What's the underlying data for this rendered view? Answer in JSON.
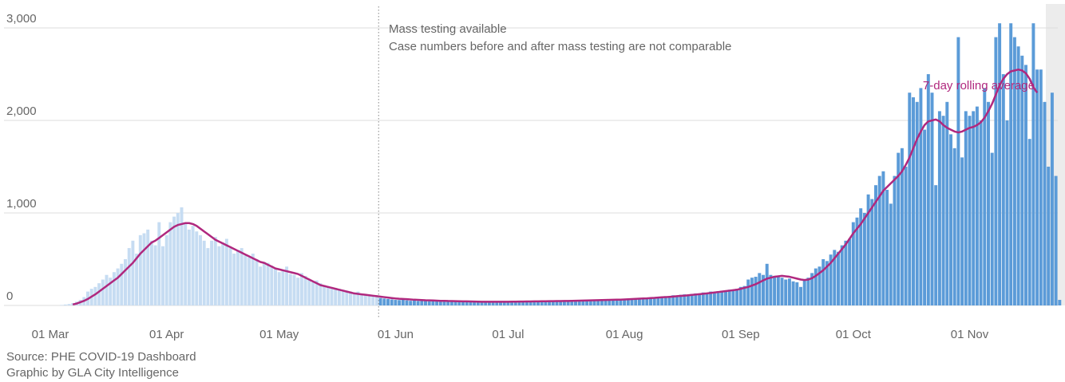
{
  "chart_data": {
    "type": "bar",
    "annotations": [
      "Mass testing available",
      "Case numbers before and after mass testing are not comparable"
    ],
    "source": "Source: PHE COVID-19 Dashboard",
    "credit": "Graphic by GLA City Intelligence",
    "categories": [
      "01 Mar",
      null,
      null,
      null,
      null,
      null,
      null,
      null,
      null,
      null,
      null,
      null,
      null,
      null,
      null,
      null,
      null,
      null,
      null,
      null,
      null,
      null,
      null,
      null,
      null,
      null,
      null,
      null,
      null,
      null,
      null,
      "01 Apr",
      null,
      null,
      null,
      null,
      null,
      null,
      null,
      null,
      null,
      null,
      null,
      null,
      null,
      null,
      null,
      null,
      null,
      null,
      null,
      null,
      null,
      null,
      null,
      null,
      null,
      null,
      null,
      null,
      null,
      "01 May",
      null,
      null,
      null,
      null,
      null,
      null,
      null,
      null,
      null,
      null,
      null,
      null,
      null,
      null,
      null,
      null,
      null,
      null,
      null,
      null,
      null,
      null,
      null,
      null,
      null,
      null,
      null,
      null,
      null,
      null,
      "01 Jun",
      null,
      null,
      null,
      null,
      null,
      null,
      null,
      null,
      null,
      null,
      null,
      null,
      null,
      null,
      null,
      null,
      null,
      null,
      null,
      null,
      null,
      null,
      null,
      null,
      null,
      null,
      null,
      null,
      null,
      "01 Jul",
      null,
      null,
      null,
      null,
      null,
      null,
      null,
      null,
      null,
      null,
      null,
      null,
      null,
      null,
      null,
      null,
      null,
      null,
      null,
      null,
      null,
      null,
      null,
      null,
      null,
      null,
      null,
      null,
      null,
      null,
      "01 Aug",
      null,
      null,
      null,
      null,
      null,
      null,
      null,
      null,
      null,
      null,
      null,
      null,
      null,
      null,
      null,
      null,
      null,
      null,
      null,
      null,
      null,
      null,
      null,
      null,
      null,
      null,
      null,
      null,
      null,
      null,
      "01 Sep",
      null,
      null,
      null,
      null,
      null,
      null,
      null,
      null,
      null,
      null,
      null,
      null,
      null,
      null,
      null,
      null,
      null,
      null,
      null,
      null,
      null,
      null,
      null,
      null,
      null,
      null,
      null,
      null,
      null,
      "01 Oct",
      null,
      null,
      null,
      null,
      null,
      null,
      null,
      null,
      null,
      null,
      null,
      null,
      null,
      null,
      null,
      null,
      null,
      null,
      null,
      null,
      null,
      null,
      null,
      null,
      null,
      null,
      null,
      null,
      null,
      null,
      "01 Nov",
      null,
      null,
      null,
      null,
      null,
      null,
      null,
      null,
      null,
      null,
      null,
      null,
      null,
      null,
      null,
      null,
      null,
      null,
      null,
      null,
      null,
      null,
      null,
      null
    ],
    "series": [
      {
        "color": "#c6dcf2",
        "values": [
          0,
          0,
          0,
          5,
          10,
          15,
          25,
          40,
          60,
          90,
          150,
          180,
          200,
          240,
          280,
          330,
          300,
          360,
          400,
          450,
          500,
          620,
          700,
          560,
          760,
          780,
          820,
          700,
          650,
          900,
          640,
          760,
          900,
          960,
          1000,
          1060,
          880,
          820,
          860,
          800,
          760,
          700,
          620,
          700,
          740,
          640,
          680,
          720,
          620,
          560,
          600,
          620,
          540,
          520,
          560,
          500,
          420,
          470,
          460,
          430,
          400,
          360,
          380,
          420,
          340,
          330,
          300,
          350,
          320,
          280,
          250,
          270,
          240,
          220,
          210,
          200,
          190,
          180,
          170,
          160,
          150,
          140,
          150,
          120,
          110,
          100,
          110,
          95,
          null,
          null,
          null,
          null,
          null,
          null,
          null,
          null,
          null,
          null,
          null,
          null,
          null,
          null,
          null,
          null,
          null,
          null,
          null,
          null,
          null,
          null,
          null,
          null,
          null,
          null,
          null,
          null,
          null,
          null,
          null,
          null,
          null,
          null,
          null,
          null,
          null,
          null,
          null,
          null,
          null,
          null,
          null,
          null,
          null,
          null,
          null,
          null,
          null,
          null,
          null,
          null,
          null,
          null,
          null,
          null,
          null,
          null,
          null,
          null,
          null,
          null,
          null,
          null,
          null,
          null,
          null,
          null,
          null,
          null,
          null,
          null,
          null,
          null,
          null,
          null,
          null,
          null,
          null,
          null,
          null,
          null,
          null,
          null,
          null,
          null,
          null,
          null,
          null,
          null,
          null,
          null,
          null,
          null,
          null,
          null,
          null,
          null,
          null,
          null,
          null,
          null,
          null,
          null,
          null,
          null,
          null,
          null,
          null,
          null,
          null,
          null,
          null,
          null,
          null,
          null,
          null,
          null,
          null,
          null,
          null,
          null,
          null,
          null,
          null,
          null,
          null,
          null,
          null,
          null,
          null,
          null,
          null,
          null,
          null,
          null,
          null,
          null,
          null,
          null,
          null,
          null,
          null,
          null,
          null,
          null,
          null,
          null,
          null,
          null,
          null,
          null,
          null,
          null,
          null,
          null,
          null,
          null,
          null,
          null,
          null,
          null,
          null,
          null,
          null,
          null,
          null,
          null,
          null,
          null,
          null,
          null,
          null,
          null,
          null,
          null,
          null,
          null,
          null,
          null,
          null,
          null
        ]
      },
      {
        "color": "#5b9bd8",
        "values": [
          null,
          null,
          null,
          null,
          null,
          null,
          null,
          null,
          null,
          null,
          null,
          null,
          null,
          null,
          null,
          null,
          null,
          null,
          null,
          null,
          null,
          null,
          null,
          null,
          null,
          null,
          null,
          null,
          null,
          null,
          null,
          null,
          null,
          null,
          null,
          null,
          null,
          null,
          null,
          null,
          null,
          null,
          null,
          null,
          null,
          null,
          null,
          null,
          null,
          null,
          null,
          null,
          null,
          null,
          null,
          null,
          null,
          null,
          null,
          null,
          null,
          null,
          null,
          null,
          null,
          null,
          null,
          null,
          null,
          null,
          null,
          null,
          null,
          null,
          null,
          null,
          null,
          null,
          null,
          null,
          null,
          null,
          null,
          null,
          null,
          null,
          null,
          null,
          80,
          75,
          70,
          65,
          60,
          58,
          62,
          55,
          50,
          55,
          48,
          50,
          52,
          45,
          50,
          48,
          55,
          50,
          42,
          45,
          48,
          40,
          42,
          45,
          40,
          38,
          42,
          40,
          35,
          40,
          38,
          42,
          45,
          40,
          38,
          40,
          42,
          36,
          40,
          45,
          38,
          42,
          44,
          40,
          38,
          45,
          50,
          42,
          46,
          48,
          44,
          50,
          52,
          48,
          45,
          55,
          50,
          58,
          60,
          55,
          52,
          60,
          65,
          58,
          62,
          70,
          68,
          75,
          72,
          80,
          78,
          85,
          82,
          90,
          88,
          95,
          100,
          92,
          110,
          105,
          115,
          120,
          110,
          125,
          130,
          120,
          140,
          135,
          150,
          145,
          155,
          160,
          150,
          170,
          165,
          180,
          200,
          210,
          280,
          300,
          310,
          350,
          330,
          450,
          330,
          320,
          310,
          300,
          280,
          290,
          260,
          250,
          200,
          270,
          300,
          350,
          400,
          420,
          500,
          480,
          550,
          600,
          580,
          650,
          700,
          720,
          900,
          950,
          1050,
          1000,
          1200,
          1150,
          1300,
          1400,
          1450,
          1250,
          1100,
          1400,
          1650,
          1700,
          1500,
          2300,
          2250,
          2200,
          2350,
          1900,
          2500,
          2300,
          1300,
          2100,
          2050,
          2200,
          1850,
          1700,
          2900,
          1600,
          2100,
          2050,
          2100,
          2150,
          2000,
          2350,
          2200,
          1650,
          2900,
          3050,
          2500,
          2000,
          3050,
          2900,
          2800,
          2700,
          2600,
          1800,
          3050,
          2550,
          2550,
          2200,
          1500,
          2300,
          1400,
          60
        ]
      },
      {
        "name": "7-day rolling average",
        "type": "line",
        "color": "#b0287e",
        "values": [
          null,
          null,
          null,
          null,
          null,
          null,
          10,
          20,
          35,
          50,
          70,
          95,
          120,
          150,
          180,
          210,
          240,
          270,
          300,
          340,
          380,
          420,
          460,
          510,
          560,
          600,
          640,
          680,
          700,
          730,
          760,
          790,
          820,
          850,
          870,
          880,
          890,
          890,
          880,
          860,
          830,
          800,
          770,
          740,
          710,
          690,
          670,
          650,
          630,
          610,
          590,
          570,
          550,
          530,
          510,
          490,
          470,
          460,
          440,
          420,
          400,
          390,
          380,
          370,
          360,
          350,
          340,
          320,
          300,
          280,
          260,
          240,
          220,
          210,
          200,
          190,
          180,
          170,
          160,
          150,
          140,
          130,
          125,
          120,
          115,
          110,
          105,
          100,
          95,
          90,
          85,
          80,
          75,
          72,
          70,
          68,
          65,
          62,
          60,
          58,
          56,
          55,
          54,
          52,
          50,
          50,
          48,
          47,
          46,
          45,
          44,
          44,
          43,
          42,
          41,
          40,
          40,
          40,
          40,
          40,
          40,
          40,
          40,
          41,
          41,
          42,
          42,
          43,
          43,
          44,
          44,
          45,
          45,
          46,
          46,
          47,
          47,
          48,
          49,
          50,
          51,
          52,
          53,
          54,
          55,
          56,
          57,
          58,
          59,
          60,
          61,
          62,
          63,
          65,
          67,
          69,
          71,
          73,
          75,
          77,
          80,
          82,
          85,
          88,
          90,
          93,
          96,
          100,
          103,
          106,
          110,
          114,
          118,
          122,
          126,
          130,
          135,
          140,
          145,
          150,
          155,
          160,
          165,
          170,
          180,
          190,
          200,
          215,
          230,
          250,
          270,
          290,
          300,
          310,
          315,
          320,
          315,
          310,
          300,
          290,
          280,
          275,
          280,
          295,
          320,
          350,
          380,
          420,
          460,
          510,
          560,
          610,
          660,
          720,
          780,
          830,
          880,
          940,
          1000,
          1060,
          1120,
          1180,
          1240,
          1280,
          1320,
          1360,
          1400,
          1450,
          1520,
          1600,
          1700,
          1800,
          1880,
          1950,
          1990,
          2000,
          2010,
          1990,
          1950,
          1920,
          1900,
          1880,
          1870,
          1880,
          1900,
          1920,
          1930,
          1950,
          1980,
          2030,
          2100,
          2180,
          2280,
          2380,
          2450,
          2500,
          2530,
          2540,
          2550,
          2540,
          2510,
          2450,
          2360,
          2300,
          null,
          null,
          null,
          null,
          null,
          null
        ]
      }
    ],
    "ylim": [
      0,
      3000
    ],
    "yticks": [
      0,
      {
        "value": 1000,
        "label": "1,000"
      },
      {
        "value": 2000,
        "label": "2,000"
      },
      {
        "value": 3000,
        "label": "3,000"
      }
    ],
    "grid": true
  }
}
